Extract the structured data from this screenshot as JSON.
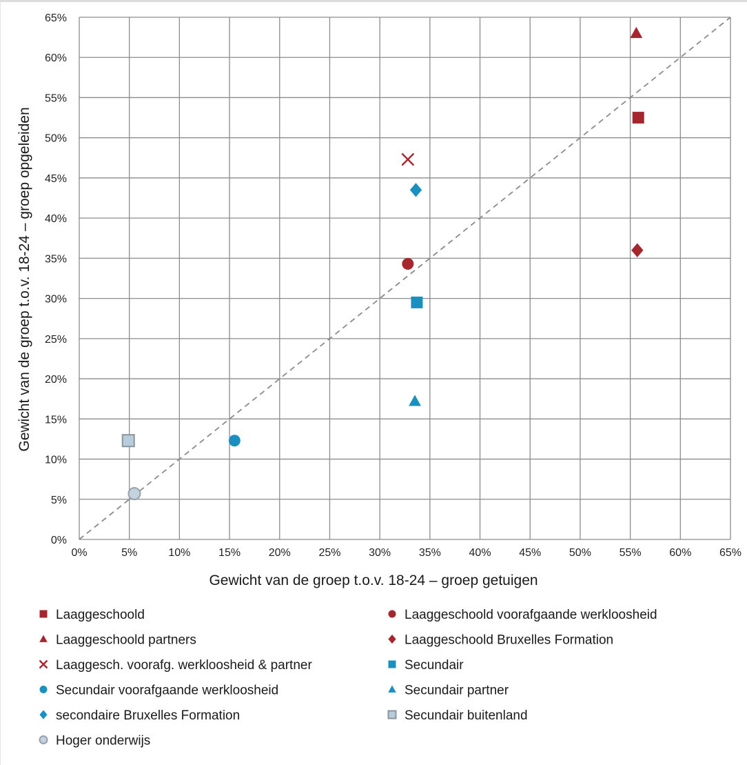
{
  "chart_data": {
    "type": "scatter",
    "title": "",
    "xlabel": "Gewicht van de groep t.o.v. 18-24 – groep getuigen",
    "ylabel": "Gewicht van de groep t.o.v. 18-24 – groep opgeleiden",
    "xlim": [
      0,
      65
    ],
    "ylim": [
      0,
      65
    ],
    "x_ticks": [
      "0%",
      "5%",
      "10%",
      "15%",
      "20%",
      "25%",
      "30%",
      "35%",
      "40%",
      "45%",
      "50%",
      "55%",
      "60%",
      "65%"
    ],
    "y_ticks": [
      "0%",
      "5%",
      "10%",
      "15%",
      "20%",
      "25%",
      "30%",
      "35%",
      "40%",
      "45%",
      "50%",
      "55%",
      "60%",
      "65%"
    ],
    "grid": true,
    "diagonal_reference_line": true,
    "legend_position": "bottom",
    "series": [
      {
        "name": "Laaggeschoold",
        "marker": "square",
        "color": "#a6262e",
        "x": 55.8,
        "y": 52.5
      },
      {
        "name": "Laaggeschoold voorafgaande werkloosheid",
        "marker": "circle",
        "color": "#a6262e",
        "x": 32.8,
        "y": 34.3
      },
      {
        "name": "Laaggeschoold partners",
        "marker": "triangle",
        "color": "#a6262e",
        "x": 55.6,
        "y": 63.0
      },
      {
        "name": "Laaggeschoold Bruxelles Formation",
        "marker": "diamond",
        "color": "#a6262e",
        "x": 55.7,
        "y": 36.0
      },
      {
        "name": "Laaggesch. voorafg. werkloosheid & partner",
        "marker": "x",
        "color": "#a6262e",
        "x": 32.8,
        "y": 47.3
      },
      {
        "name": "Secundair",
        "marker": "square",
        "color": "#1a90c0",
        "x": 33.7,
        "y": 29.5
      },
      {
        "name": "Secundair voorafgaande werkloosheid",
        "marker": "circle",
        "color": "#1a90c0",
        "x": 15.5,
        "y": 12.3
      },
      {
        "name": "Secundair partner",
        "marker": "triangle",
        "color": "#1a90c0",
        "x": 33.5,
        "y": 17.2
      },
      {
        "name": "secondaire Bruxelles Formation",
        "marker": "diamond",
        "color": "#1a90c0",
        "x": 33.6,
        "y": 43.5
      },
      {
        "name": "Secundair buitenland",
        "marker": "square-light",
        "color": "#b8ccdc",
        "x": 4.9,
        "y": 12.3
      },
      {
        "name": "Hoger onderwijs",
        "marker": "circle-light",
        "color": "#c4d2de",
        "x": 5.5,
        "y": 5.7
      }
    ]
  }
}
